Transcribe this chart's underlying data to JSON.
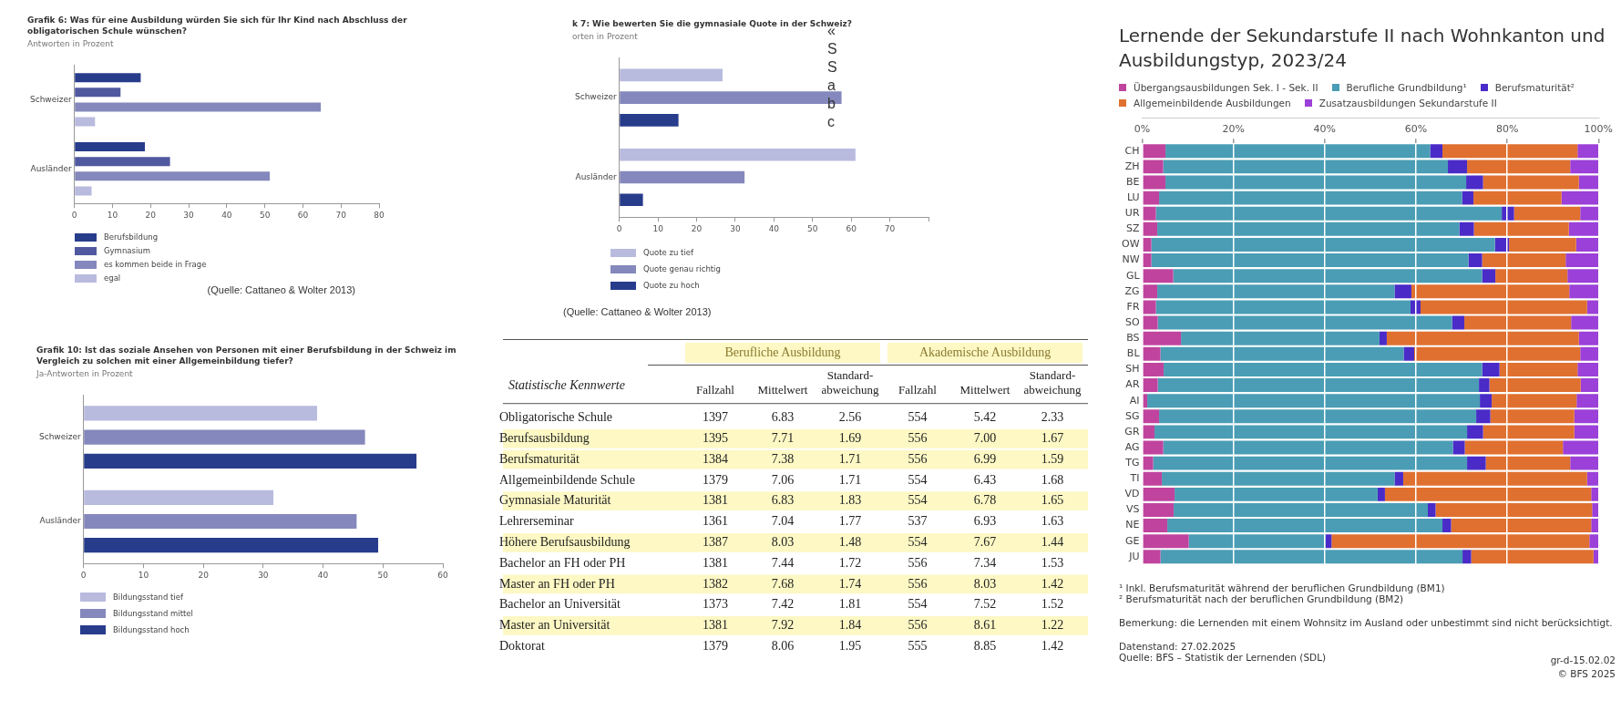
{
  "chart_data": [
    {
      "type": "bar",
      "orientation": "horizontal",
      "title": "Grafik 6: Was für eine Ausbildung würden Sie sich für Ihr Kind nach Abschluss der obligatorischen Schule wünschen?",
      "subtitle": "Antworten in Prozent",
      "categories": [
        "Schweizer",
        "Ausländer"
      ],
      "series": [
        {
          "name": "Berufsbildung",
          "color": "#283c8c",
          "values": [
            17.4,
            18.5
          ]
        },
        {
          "name": "Gymnasium",
          "color": "#5058a0",
          "values": [
            12.1,
            25.1
          ]
        },
        {
          "name": "es kommen beide in Frage",
          "color": "#8488bc",
          "values": [
            64.7,
            51.3
          ]
        },
        {
          "name": "egal",
          "color": "#b8bade",
          "values": [
            5.4,
            4.5
          ]
        }
      ],
      "xlim": [
        0,
        80
      ],
      "xticks": [
        0,
        10,
        20,
        30,
        40,
        50,
        60,
        70,
        80
      ],
      "legend": "bottom left",
      "annotations": [
        "(Quelle: Cattaneo & Wolter 2013)"
      ]
    },
    {
      "type": "bar",
      "orientation": "horizontal",
      "title": "k 7: Wie bewerten Sie die gymnasiale Quote in der Schweiz?",
      "subtitle": "orten in Prozent",
      "categories": [
        "Schweizer",
        "Ausländer"
      ],
      "series": [
        {
          "name": "Quote zu tief",
          "color": "#b8bade",
          "values": [
            26.7,
            61.1
          ]
        },
        {
          "name": "Quote genau richtig",
          "color": "#8488bc",
          "values": [
            57.5,
            32.4
          ]
        },
        {
          "name": "Quote zu hoch",
          "color": "#283c8c",
          "values": [
            15.3,
            6.1
          ]
        }
      ],
      "xlim": [
        0,
        80
      ],
      "xticks": [
        0,
        10,
        20,
        30,
        40,
        50,
        60,
        70,
        {
          "value": 80,
          "label": null
        }
      ],
      "legend": "bottom left",
      "annotations": [
        "(Quelle: Cattaneo & Wolter 2013)",
        "«\nS\nS\na\nb\nc"
      ]
    },
    {
      "type": "bar",
      "orientation": "horizontal",
      "title": "Grafik 10: Ist das soziale Ansehen von Personen mit einer Berufsbildung in der Schweiz im Vergleich zu solchen mit einer Allgemeinbildung tiefer?",
      "subtitle": "Ja-Antworten in Prozent",
      "categories": [
        "Schweizer",
        "Ausländer"
      ],
      "series": [
        {
          "name": "Bildungsstand tief",
          "color": "#b8bade",
          "values": [
            39.0,
            31.7
          ]
        },
        {
          "name": "Bildungsstand mittel",
          "color": "#8488bc",
          "values": [
            47.0,
            45.6
          ]
        },
        {
          "name": "Bildungsstand hoch",
          "color": "#283c8c",
          "values": [
            55.6,
            49.2
          ]
        }
      ],
      "xlim": [
        0,
        60
      ],
      "xticks": [
        0,
        10,
        20,
        30,
        40,
        50,
        60
      ],
      "legend": "bottom left"
    },
    {
      "type": "heatmap",
      "ylabel": "Statistische Kennwerte",
      "categories": [
        "Fallzahl",
        "Mittelwert",
        "Standard-abweichung",
        "Fallzahl",
        "Mittelwert",
        "Standard-abweichung"
      ],
      "y_categories": [
        "Obligatorische Schule",
        "Berufsausbildung",
        "Berufsmaturität",
        "Allgemeinbildende Schule",
        "Gymnasiale Maturität",
        "Lehrerseminar",
        "Höhere Berufsausbildung",
        "Bachelor an FH oder PH",
        "Master an FH oder PH",
        "Bachelor an Universität",
        "Master an Universität",
        "Doktorat"
      ],
      "cells": [
        [
          1397,
          6.83,
          2.56,
          554,
          5.42,
          2.33
        ],
        [
          1395,
          7.71,
          1.69,
          556,
          7.0,
          1.67
        ],
        [
          1384,
          7.38,
          1.71,
          556,
          6.99,
          1.59
        ],
        [
          1379,
          7.06,
          1.71,
          554,
          6.43,
          1.68
        ],
        [
          1381,
          6.83,
          1.83,
          554,
          6.78,
          1.65
        ],
        [
          1361,
          7.04,
          1.77,
          537,
          6.93,
          1.63
        ],
        [
          1387,
          8.03,
          1.48,
          554,
          7.67,
          1.44
        ],
        [
          1381,
          7.44,
          1.72,
          556,
          7.34,
          1.53
        ],
        [
          1382,
          7.68,
          1.74,
          556,
          8.03,
          1.42
        ],
        [
          1373,
          7.42,
          1.81,
          554,
          7.52,
          1.52
        ],
        [
          1381,
          7.92,
          1.84,
          556,
          8.61,
          1.22
        ],
        [
          1379,
          8.06,
          1.95,
          555,
          8.85,
          1.42
        ]
      ],
      "cell_labels": [
        [
          "1397",
          "6.83",
          "2.56",
          "554",
          "5.42",
          "2.33"
        ],
        [
          "1395",
          "7.71",
          "1.69",
          "556",
          "7.00",
          "1.67"
        ],
        [
          "1384",
          "7.38",
          "1.71",
          "556",
          "6.99",
          "1.59"
        ],
        [
          "1379",
          "7.06",
          "1.71",
          "554",
          "6.43",
          "1.68"
        ],
        [
          "1381",
          "6.83",
          "1.83",
          "554",
          "6.78",
          "1.65"
        ],
        [
          "1361",
          "7.04",
          "1.77",
          "537",
          "6.93",
          "1.63"
        ],
        [
          "1387",
          "8.03",
          "1.48",
          "554",
          "7.67",
          "1.44"
        ],
        [
          "1381",
          "7.44",
          "1.72",
          "556",
          "7.34",
          "1.53"
        ],
        [
          "1382",
          "7.68",
          "1.74",
          "556",
          "8.03",
          "1.42"
        ],
        [
          "1373",
          "7.42",
          "1.81",
          "554",
          "7.52",
          "1.52"
        ],
        [
          "1381",
          "7.92",
          "1.84",
          "556",
          "8.61",
          "1.22"
        ],
        [
          "1379",
          "8.06",
          "1.95",
          "555",
          "8.85",
          "1.42"
        ]
      ],
      "colors": [
        "#ffffff",
        "#fdf8c4",
        "#fdf8c4",
        "#ffffff",
        "#fdf8c4",
        "#ffffff",
        "#fdf8c4",
        "#ffffff",
        "#fdf8c4",
        "#ffffff",
        "#fdf8c4",
        "#ffffff"
      ],
      "annotations": [
        "Berufliche Ausbildung",
        "Akademische Ausbildung"
      ]
    },
    {
      "type": "bar",
      "orientation": "horizontal",
      "stacked": true,
      "title": "Lernende der Sekundarstufe II nach Wohnkanton und Ausbildungstyp, 2023/24",
      "categories": [
        "CH",
        "ZH",
        "BE",
        "LU",
        "UR",
        "SZ",
        "OW",
        "NW",
        "GL",
        "ZG",
        "FR",
        "SO",
        "BS",
        "BL",
        "SH",
        "AR",
        "AI",
        "SG",
        "GR",
        "AG",
        "TG",
        "TI",
        "VD",
        "VS",
        "NE",
        "GE",
        "JU"
      ],
      "series": [
        {
          "name": "Übergangsausbildungen Sek. I - Sek. II",
          "color": "#c0449e",
          "values": [
            5.1,
            4.6,
            5.1,
            3.7,
            3.0,
            3.3,
            2.0,
            2.0,
            6.8,
            3.3,
            3.0,
            3.4,
            8.5,
            4.0,
            4.7,
            3.4,
            1.1,
            3.7,
            2.7,
            4.6,
            2.4,
            4.3,
            7.1,
            6.9,
            5.5,
            10.2,
            4.0
          ]
        },
        {
          "name": "Berufliche Grundbildung¹",
          "color": "#4a9db5",
          "values": [
            58.0,
            62.4,
            65.9,
            66.4,
            75.8,
            66.2,
            75.3,
            69.5,
            67.7,
            52.0,
            55.8,
            64.5,
            43.5,
            53.3,
            69.8,
            70.4,
            72.9,
            69.5,
            68.5,
            63.5,
            68.8,
            51.0,
            44.5,
            55.7,
            60.3,
            30.0,
            66.2
          ]
        },
        {
          "name": "Berufsmaturität²",
          "color": "#4a2bc8",
          "values": [
            2.7,
            4.2,
            3.7,
            2.5,
            2.7,
            3.2,
            3.1,
            3.0,
            2.9,
            3.7,
            2.2,
            2.7,
            1.6,
            2.3,
            3.8,
            2.3,
            2.6,
            3.1,
            3.5,
            2.6,
            4.1,
            1.9,
            1.6,
            1.7,
            1.9,
            1.3,
            1.9
          ]
        },
        {
          "name": "Allgemeinbildende Ausbildungen",
          "color": "#e07030",
          "values": [
            29.6,
            22.6,
            21.0,
            19.3,
            14.5,
            20.8,
            14.7,
            18.3,
            15.8,
            34.6,
            36.5,
            23.4,
            42.1,
            36.4,
            17.1,
            20.0,
            18.6,
            18.4,
            20.0,
            21.5,
            18.5,
            40.3,
            45.2,
            34.3,
            30.7,
            56.5,
            26.8
          ]
        },
        {
          "name": "Zusatzausbildungen Sekundarstufe II",
          "color": "#9b40d8",
          "values": [
            4.6,
            6.2,
            4.3,
            8.1,
            4.0,
            6.5,
            4.9,
            7.2,
            6.8,
            6.4,
            2.5,
            6.0,
            4.3,
            4.0,
            4.6,
            3.9,
            4.8,
            5.3,
            5.3,
            7.8,
            6.2,
            2.5,
            1.6,
            1.4,
            1.6,
            2.0,
            1.1
          ]
        }
      ],
      "xlim": [
        0,
        100
      ],
      "xticks": [
        {
          "value": 0,
          "label": "0%"
        },
        {
          "value": 20,
          "label": "20%"
        },
        {
          "value": 40,
          "label": "40%"
        },
        {
          "value": 60,
          "label": "60%"
        },
        {
          "value": 80,
          "label": "80%"
        },
        {
          "value": 100,
          "label": "100%"
        }
      ],
      "grid": "x",
      "legend": "top left",
      "annotations": [
        "¹ Inkl. Berufsmaturität während der beruflichen Grundbildung (BM1)",
        "² Berufsmaturität nach der beruflichen Grundbildung (BM2)",
        "Bemerkung: die Lernenden mit einem Wohnsitz im Ausland oder unbestimmt sind nicht berücksichtigt.",
        "Datenstand: 27.02.2025",
        "Quelle: BFS – Statistik der Lernenden (SDL)",
        "gr-d-15.02.02",
        "© BFS 2025"
      ]
    }
  ]
}
